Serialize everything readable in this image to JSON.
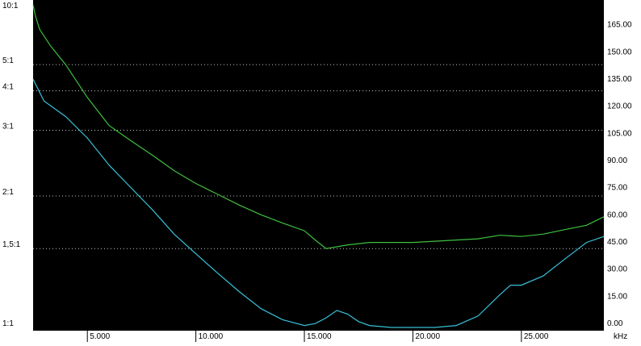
{
  "chart_data": {
    "type": "line",
    "x_unit": "kHz",
    "x_ticks": [
      "5.000",
      "10.000",
      "15.000",
      "20.000",
      "25.000"
    ],
    "x_tick_values": [
      5000,
      10000,
      15000,
      20000,
      25000
    ],
    "xlim": [
      2500,
      28800
    ],
    "left_axis": {
      "scale": "swr",
      "tick_labels": [
        "10:1",
        "5:1",
        "4:1",
        "3:1",
        "2:1",
        "1,5:1",
        "1:1"
      ],
      "tick_values": [
        10,
        5,
        4,
        3,
        2,
        1.5,
        1
      ],
      "grid_values": [
        5,
        4,
        3,
        2,
        1.5
      ]
    },
    "right_axis": {
      "scale": "linear",
      "tick_labels": [
        "165.00",
        "150.00",
        "135.00",
        "120.00",
        "105.00",
        "90.00",
        "75.00",
        "60.00",
        "45.00",
        "30.00",
        "15.00",
        "0.00"
      ],
      "tick_values": [
        165,
        150,
        135,
        120,
        105,
        90,
        75,
        60,
        45,
        30,
        15,
        0
      ],
      "ylim": [
        0,
        180
      ]
    },
    "grid": true,
    "series": [
      {
        "axis": "left",
        "color": "#3ec03e",
        "x": [
          2500,
          2600,
          2800,
          3300,
          4000,
          5000,
          6000,
          7000,
          8000,
          9000,
          10000,
          11000,
          12000,
          13000,
          14000,
          15000,
          15500,
          16000,
          17000,
          18000,
          19000,
          20000,
          21000,
          22000,
          23000,
          24000,
          25000,
          26000,
          27000,
          28000,
          28800
        ],
        "y": [
          10,
          8.6,
          7.2,
          6.0,
          5.0,
          3.8,
          3.1,
          2.8,
          2.55,
          2.32,
          2.15,
          2.02,
          1.9,
          1.8,
          1.72,
          1.65,
          1.57,
          1.5,
          1.53,
          1.55,
          1.55,
          1.55,
          1.56,
          1.57,
          1.58,
          1.61,
          1.6,
          1.62,
          1.66,
          1.7,
          1.78
        ]
      },
      {
        "axis": "left",
        "color": "#38c0d8",
        "x": [
          2500,
          3000,
          4000,
          5000,
          6000,
          7000,
          8000,
          9000,
          10000,
          11000,
          12000,
          13000,
          14000,
          15000,
          15500,
          16000,
          16500,
          17000,
          17500,
          18000,
          19000,
          20000,
          21000,
          22000,
          23000,
          24000,
          24500,
          25000,
          26000,
          27000,
          28000,
          28800
        ],
        "y": [
          4.4,
          3.7,
          3.3,
          2.85,
          2.4,
          2.1,
          1.85,
          1.62,
          1.46,
          1.32,
          1.2,
          1.1,
          1.04,
          1.01,
          1.02,
          1.05,
          1.09,
          1.07,
          1.03,
          1.01,
          1.0,
          1.0,
          1.0,
          1.01,
          1.06,
          1.18,
          1.24,
          1.24,
          1.3,
          1.42,
          1.55,
          1.6
        ]
      }
    ]
  }
}
